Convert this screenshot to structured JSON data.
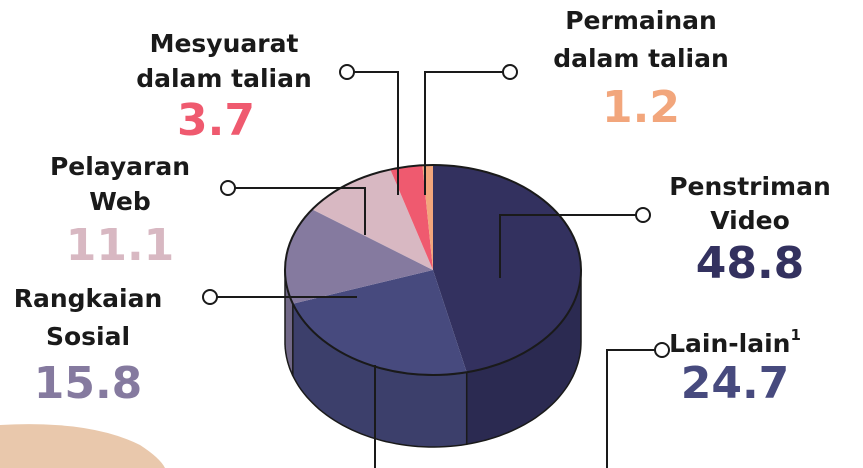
{
  "chart_data": {
    "type": "pie",
    "categories": [
      [
        "Penstriman",
        "Video"
      ],
      [
        "Lain-lain"
      ],
      [
        "Rangkaian",
        "Sosial"
      ],
      [
        "Pelayaran",
        "Web"
      ],
      [
        "Mesyuarat",
        "dalam talian"
      ],
      [
        "Permainan",
        "dalam talian"
      ]
    ],
    "category_notes": [
      null,
      "1",
      null,
      null,
      null,
      null
    ],
    "values": [
      48.8,
      24.7,
      15.8,
      11.1,
      3.7,
      1.2
    ],
    "colors": [
      "#33315f",
      "#474a7e",
      "#857a9f",
      "#d8b8c2",
      "#ef5a6f",
      "#f2a67c"
    ]
  }
}
